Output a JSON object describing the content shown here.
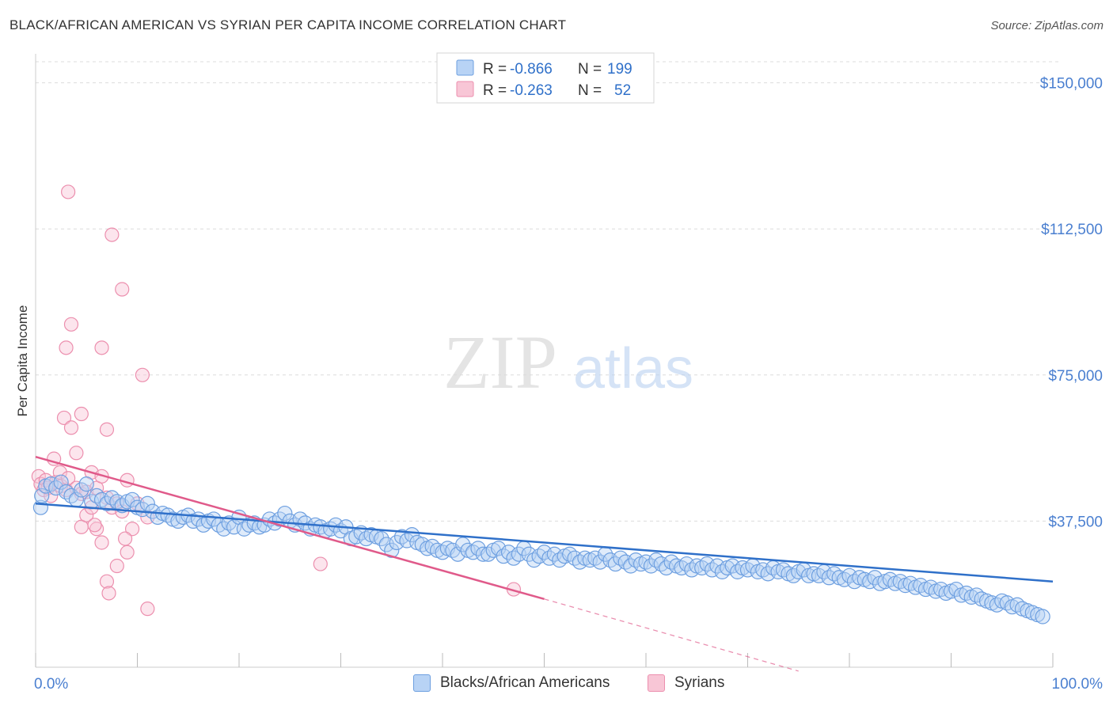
{
  "title": "BLACK/AFRICAN AMERICAN VS SYRIAN PER CAPITA INCOME CORRELATION CHART",
  "source": "Source: ZipAtlas.com",
  "watermark": {
    "zip": "ZIP",
    "atlas": "atlas"
  },
  "colors": {
    "blue_fill": "#b8d3f5",
    "blue_stroke": "#6d9fe0",
    "blue_line": "#2f70c9",
    "pink_fill": "#f8c6d6",
    "pink_stroke": "#ec8fae",
    "pink_line": "#e05a8a",
    "axis_label": "#4a7fd0",
    "grid": "#dcdcdc"
  },
  "legend_top": {
    "rows": [
      {
        "r_label": "R = ",
        "r_value": "-0.866",
        "n_label": "N = ",
        "n_value": "199",
        "series": "blue"
      },
      {
        "r_label": "R = ",
        "r_value": "-0.263",
        "n_label": "N = ",
        "n_value": "52",
        "series": "pink"
      }
    ]
  },
  "legend_bottom": [
    {
      "label": "Blacks/African Americans",
      "series": "blue"
    },
    {
      "label": "Syrians",
      "series": "pink"
    }
  ],
  "chart_data": {
    "type": "scatter",
    "title": "BLACK/AFRICAN AMERICAN VS SYRIAN PER CAPITA INCOME CORRELATION CHART",
    "xlabel": "",
    "ylabel": "Per Capita Income",
    "xlim": [
      0,
      100
    ],
    "ylim": [
      0,
      155000
    ],
    "x_tick_labels": [
      "0.0%",
      "100.0%"
    ],
    "y_ticks": [
      37500,
      75000,
      112500,
      150000
    ],
    "y_tick_labels": [
      "$37,500",
      "$75,000",
      "$112,500",
      "$150,000"
    ],
    "grid": true,
    "legend_position": "top-center",
    "series": [
      {
        "name": "Blacks/African Americans",
        "color": "blue",
        "r": -0.866,
        "n": 199,
        "trend": {
          "x": [
            0,
            100
          ],
          "y": [
            42000,
            22000
          ]
        },
        "points": [
          [
            0.5,
            41000
          ],
          [
            0.6,
            44000
          ],
          [
            1,
            46500
          ],
          [
            1.5,
            47000
          ],
          [
            2,
            46000
          ],
          [
            2.5,
            47500
          ],
          [
            3,
            45000
          ],
          [
            3.5,
            44000
          ],
          [
            4,
            43000
          ],
          [
            4.5,
            45500
          ],
          [
            5,
            47000
          ],
          [
            5.5,
            42500
          ],
          [
            6,
            44000
          ],
          [
            6.5,
            43000
          ],
          [
            7,
            42000
          ],
          [
            7.5,
            43500
          ],
          [
            8,
            42500
          ],
          [
            8.5,
            41500
          ],
          [
            9,
            42500
          ],
          [
            9.5,
            43000
          ],
          [
            10,
            41000
          ],
          [
            10.5,
            40500
          ],
          [
            11,
            42000
          ],
          [
            11.5,
            40000
          ],
          [
            12,
            38500
          ],
          [
            12.5,
            39500
          ],
          [
            13,
            39000
          ],
          [
            13.5,
            38000
          ],
          [
            14,
            37500
          ],
          [
            14.5,
            38500
          ],
          [
            15,
            39000
          ],
          [
            15.5,
            37500
          ],
          [
            16,
            38000
          ],
          [
            16.5,
            36500
          ],
          [
            17,
            37500
          ],
          [
            17.5,
            38000
          ],
          [
            18,
            36500
          ],
          [
            18.5,
            35500
          ],
          [
            19,
            37000
          ],
          [
            19.5,
            36000
          ],
          [
            20,
            38500
          ],
          [
            20.5,
            35500
          ],
          [
            21,
            36500
          ],
          [
            21.5,
            37000
          ],
          [
            22,
            36000
          ],
          [
            22.5,
            36500
          ],
          [
            23,
            38000
          ],
          [
            23.5,
            37000
          ],
          [
            24,
            38000
          ],
          [
            24.5,
            39500
          ],
          [
            25,
            37500
          ],
          [
            25.5,
            36500
          ],
          [
            26,
            38000
          ],
          [
            26.5,
            37000
          ],
          [
            27,
            35500
          ],
          [
            27.5,
            36500
          ],
          [
            28,
            36000
          ],
          [
            28.5,
            35000
          ],
          [
            29,
            35500
          ],
          [
            29.5,
            36500
          ],
          [
            30,
            35000
          ],
          [
            30.5,
            36000
          ],
          [
            31,
            33000
          ],
          [
            31.5,
            33500
          ],
          [
            32,
            34500
          ],
          [
            32.5,
            33000
          ],
          [
            33,
            34000
          ],
          [
            33.5,
            33500
          ],
          [
            34,
            33000
          ],
          [
            34.5,
            31500
          ],
          [
            35,
            30000
          ],
          [
            35.5,
            32000
          ],
          [
            36,
            33500
          ],
          [
            36.5,
            32500
          ],
          [
            37,
            34000
          ],
          [
            37.5,
            32000
          ],
          [
            38,
            31500
          ],
          [
            38.5,
            30500
          ],
          [
            39,
            31000
          ],
          [
            39.5,
            30000
          ],
          [
            40,
            29500
          ],
          [
            40.5,
            30500
          ],
          [
            41,
            30000
          ],
          [
            41.5,
            29000
          ],
          [
            42,
            31500
          ],
          [
            42.5,
            30000
          ],
          [
            43,
            29500
          ],
          [
            43.5,
            30500
          ],
          [
            44,
            29000
          ],
          [
            44.5,
            29000
          ],
          [
            45,
            30000
          ],
          [
            45.5,
            30500
          ],
          [
            46,
            28500
          ],
          [
            46.5,
            29500
          ],
          [
            47,
            28000
          ],
          [
            47.5,
            29000
          ],
          [
            48,
            30500
          ],
          [
            48.5,
            29000
          ],
          [
            49,
            27500
          ],
          [
            49.5,
            28500
          ],
          [
            50,
            29500
          ],
          [
            50.5,
            28000
          ],
          [
            51,
            29000
          ],
          [
            51.5,
            27500
          ],
          [
            52,
            28500
          ],
          [
            52.5,
            29000
          ],
          [
            53,
            28000
          ],
          [
            53.5,
            27000
          ],
          [
            54,
            28000
          ],
          [
            54.5,
            27500
          ],
          [
            55,
            28000
          ],
          [
            55.5,
            27000
          ],
          [
            56,
            29000
          ],
          [
            56.5,
            27500
          ],
          [
            57,
            26500
          ],
          [
            57.5,
            28000
          ],
          [
            58,
            27000
          ],
          [
            58.5,
            26000
          ],
          [
            59,
            27500
          ],
          [
            59.5,
            26500
          ],
          [
            60,
            27000
          ],
          [
            60.5,
            26000
          ],
          [
            61,
            27500
          ],
          [
            61.5,
            26500
          ],
          [
            62,
            25500
          ],
          [
            62.5,
            27000
          ],
          [
            63,
            26000
          ],
          [
            63.5,
            25500
          ],
          [
            64,
            26500
          ],
          [
            64.5,
            25000
          ],
          [
            65,
            26000
          ],
          [
            65.5,
            25500
          ],
          [
            66,
            26500
          ],
          [
            66.5,
            25000
          ],
          [
            67,
            26000
          ],
          [
            67.5,
            24500
          ],
          [
            68,
            25500
          ],
          [
            68.5,
            26000
          ],
          [
            69,
            24500
          ],
          [
            69.5,
            25500
          ],
          [
            70,
            25000
          ],
          [
            70.5,
            26000
          ],
          [
            71,
            24500
          ],
          [
            71.5,
            25000
          ],
          [
            72,
            24000
          ],
          [
            72.5,
            25500
          ],
          [
            73,
            24500
          ],
          [
            73.5,
            25000
          ],
          [
            74,
            24000
          ],
          [
            74.5,
            23500
          ],
          [
            75,
            24500
          ],
          [
            75.5,
            25000
          ],
          [
            76,
            23500
          ],
          [
            76.5,
            24000
          ],
          [
            77,
            23500
          ],
          [
            77.5,
            24500
          ],
          [
            78,
            23000
          ],
          [
            78.5,
            24000
          ],
          [
            79,
            23000
          ],
          [
            79.5,
            22500
          ],
          [
            80,
            23500
          ],
          [
            80.5,
            22000
          ],
          [
            81,
            23000
          ],
          [
            81.5,
            22500
          ],
          [
            82,
            22000
          ],
          [
            82.5,
            23000
          ],
          [
            83,
            21500
          ],
          [
            83.5,
            22000
          ],
          [
            84,
            22500
          ],
          [
            84.5,
            21500
          ],
          [
            85,
            22000
          ],
          [
            85.5,
            21000
          ],
          [
            86,
            21500
          ],
          [
            86.5,
            20500
          ],
          [
            87,
            21000
          ],
          [
            87.5,
            20000
          ],
          [
            88,
            20500
          ],
          [
            88.5,
            19500
          ],
          [
            89,
            20000
          ],
          [
            89.5,
            19000
          ],
          [
            90,
            19500
          ],
          [
            90.5,
            20000
          ],
          [
            91,
            18500
          ],
          [
            91.5,
            19000
          ],
          [
            92,
            18000
          ],
          [
            92.5,
            18500
          ],
          [
            93,
            17500
          ],
          [
            93.5,
            17000
          ],
          [
            94,
            16500
          ],
          [
            94.5,
            16000
          ],
          [
            95,
            17000
          ],
          [
            95.5,
            16500
          ],
          [
            96,
            15500
          ],
          [
            96.5,
            16000
          ],
          [
            97,
            15000
          ],
          [
            97.5,
            14500
          ],
          [
            98,
            14000
          ],
          [
            98.5,
            13500
          ],
          [
            99,
            13000
          ]
        ]
      },
      {
        "name": "Syrians",
        "color": "pink",
        "r": -0.263,
        "n": 52,
        "trend": {
          "x": [
            0,
            50
          ],
          "y": [
            54000,
            17500
          ]
        },
        "trend_extension": {
          "x": [
            50,
            75
          ],
          "y": [
            17500,
            -1000
          ]
        },
        "points": [
          [
            0.3,
            49000
          ],
          [
            0.5,
            47000
          ],
          [
            0.8,
            45500
          ],
          [
            1,
            48000
          ],
          [
            1.2,
            46000
          ],
          [
            1.5,
            44000
          ],
          [
            2,
            47500
          ],
          [
            2.5,
            46500
          ],
          [
            3,
            45500
          ],
          [
            1.8,
            53500
          ],
          [
            2.4,
            50000
          ],
          [
            3.2,
            48500
          ],
          [
            4,
            46000
          ],
          [
            4.5,
            44500
          ],
          [
            5,
            45000
          ],
          [
            5.5,
            50000
          ],
          [
            6,
            46000
          ],
          [
            6.5,
            49000
          ],
          [
            7,
            43500
          ],
          [
            7.5,
            41000
          ],
          [
            8,
            42000
          ],
          [
            8.5,
            40000
          ],
          [
            9,
            48000
          ],
          [
            2.8,
            64000
          ],
          [
            3.5,
            61500
          ],
          [
            4,
            55000
          ],
          [
            4.5,
            65000
          ],
          [
            6.5,
            82000
          ],
          [
            7,
            61000
          ],
          [
            3.5,
            88000
          ],
          [
            3.2,
            122000
          ],
          [
            7.5,
            111000
          ],
          [
            8.5,
            97000
          ],
          [
            10.5,
            75000
          ],
          [
            3,
            82000
          ],
          [
            4.5,
            36000
          ],
          [
            5,
            39000
          ],
          [
            5.5,
            41000
          ],
          [
            6,
            35500
          ],
          [
            6.5,
            32000
          ],
          [
            7,
            22000
          ],
          [
            7.2,
            19000
          ],
          [
            8,
            26000
          ],
          [
            9,
            29500
          ],
          [
            10,
            42000
          ],
          [
            11,
            38500
          ],
          [
            11,
            15000
          ],
          [
            9.5,
            35500
          ],
          [
            5.8,
            36500
          ],
          [
            8.8,
            33000
          ],
          [
            28,
            26500
          ],
          [
            47,
            20000
          ]
        ]
      }
    ]
  }
}
